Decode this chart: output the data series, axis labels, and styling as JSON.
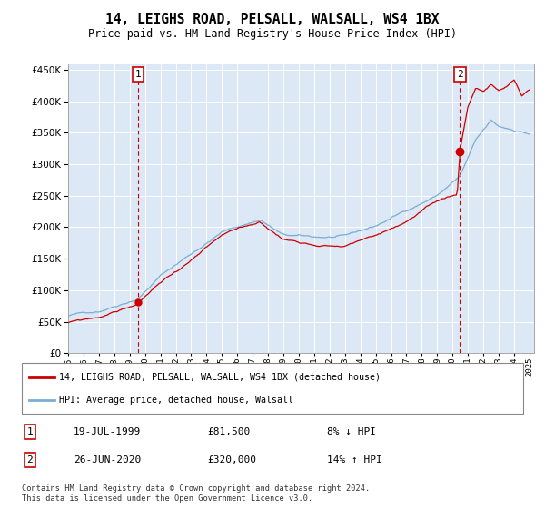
{
  "title": "14, LEIGHS ROAD, PELSALL, WALSALL, WS4 1BX",
  "subtitle": "Price paid vs. HM Land Registry's House Price Index (HPI)",
  "ylim": [
    0,
    460000
  ],
  "yticks": [
    0,
    50000,
    100000,
    150000,
    200000,
    250000,
    300000,
    350000,
    400000,
    450000
  ],
  "x_start_year": 1995,
  "x_end_year": 2025,
  "hpi_color": "#7aadd4",
  "price_color": "#cc0000",
  "transaction1_year": 1999.55,
  "transaction1_price": 81500,
  "transaction2_year": 2020.48,
  "transaction2_price": 320000,
  "legend_line1": "14, LEIGHS ROAD, PELSALL, WALSALL, WS4 1BX (detached house)",
  "legend_line2": "HPI: Average price, detached house, Walsall",
  "table_row1_date": "19-JUL-1999",
  "table_row1_price": "£81,500",
  "table_row1_hpi": "8% ↓ HPI",
  "table_row2_date": "26-JUN-2020",
  "table_row2_price": "£320,000",
  "table_row2_hpi": "14% ↑ HPI",
  "footer": "Contains HM Land Registry data © Crown copyright and database right 2024.\nThis data is licensed under the Open Government Licence v3.0.",
  "plot_bg": "#dce8f5"
}
